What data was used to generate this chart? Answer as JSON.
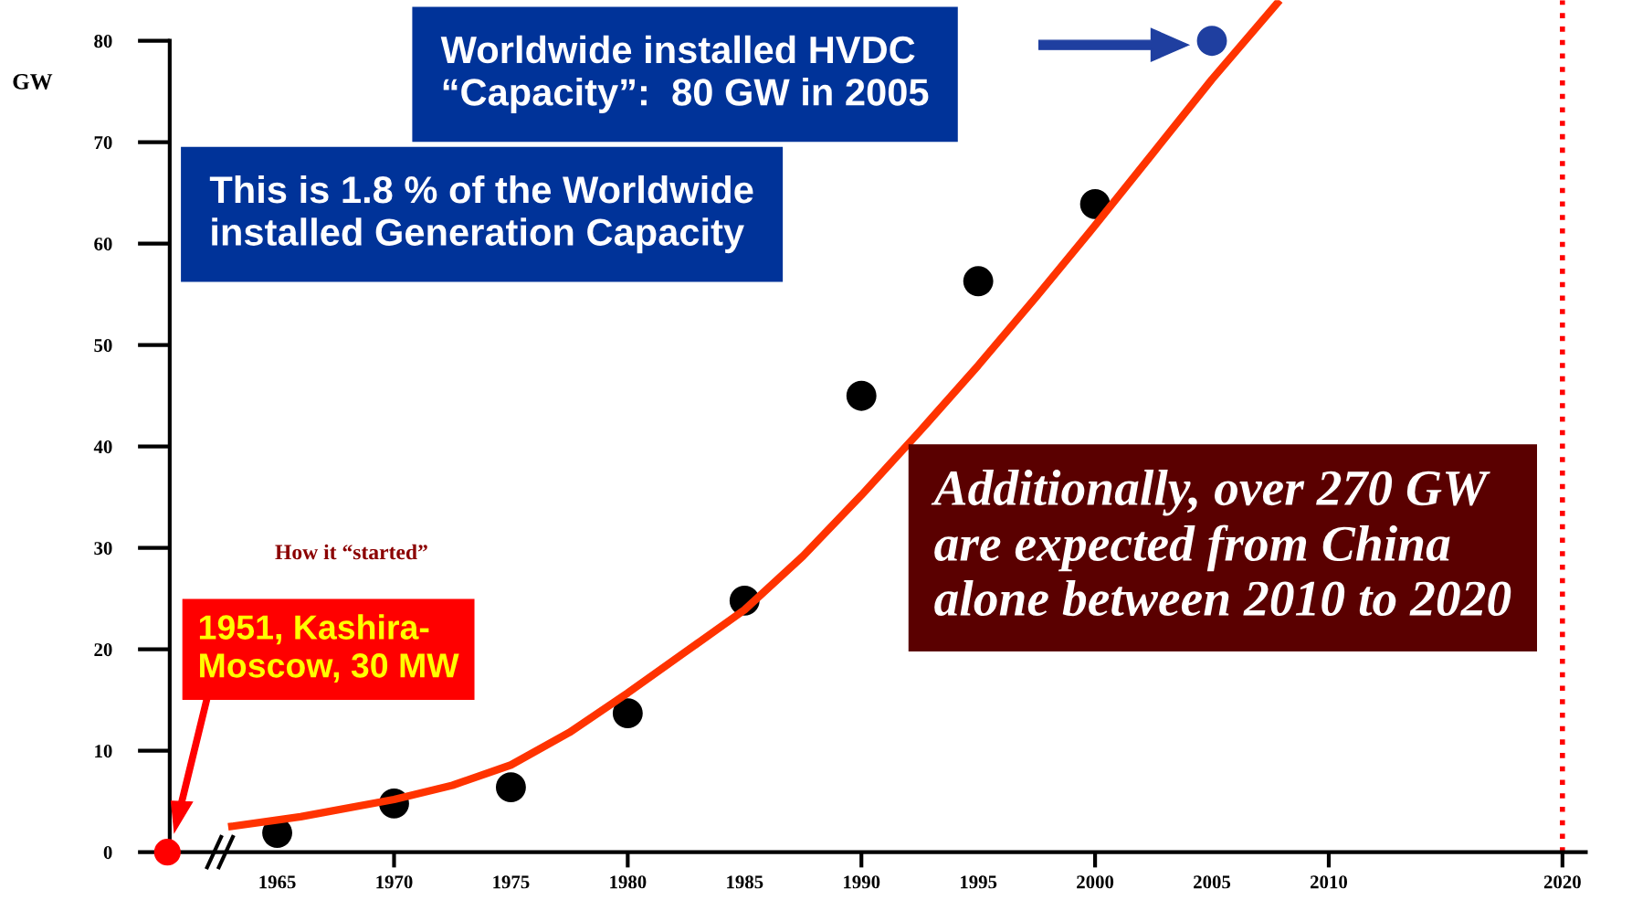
{
  "chart_data": {
    "type": "scatter",
    "ylabel": "GW",
    "xlim": [
      1960.4,
      2021
    ],
    "ylim": [
      0,
      84
    ],
    "xticks": [
      1965,
      1970,
      1975,
      1980,
      1985,
      1990,
      1995,
      2000,
      2005,
      2010,
      2020
    ],
    "yticks": [
      0,
      10,
      20,
      30,
      40,
      50,
      60,
      70,
      80
    ],
    "series": [
      {
        "marker": "circle",
        "color": "#000000",
        "x": [
          1965,
          1970,
          1975,
          1980,
          1985,
          1990,
          1995,
          2000
        ],
        "values": [
          1.9,
          4.8,
          6.4,
          13.7,
          24.8,
          45,
          56.3,
          63.9
        ]
      },
      {
        "marker": "circle",
        "color": "#1f3fa0",
        "x": [
          2005
        ],
        "values": [
          80
        ]
      },
      {
        "type": "line",
        "color": "#ff3300",
        "x": [
          1962.9,
          1966,
          1970,
          1972.5,
          1975,
          1977.5,
          1980,
          1982.5,
          1985,
          1987.5,
          1990,
          1992.5,
          1995,
          1997.5,
          2000,
          2002.5,
          2005,
          2007.9
        ],
        "values": [
          2.5,
          3.5,
          5.2,
          6.6,
          8.6,
          11.8,
          15.7,
          19.8,
          23.9,
          29.2,
          35.2,
          41.5,
          48,
          54.8,
          61.8,
          69,
          76.2,
          84
        ]
      }
    ],
    "ref_lines": [
      {
        "axis": "x",
        "value": 2020,
        "color": "#ff0000",
        "line_style": "dotted"
      }
    ],
    "annotations": [
      "Worldwide installed HVDC\n“Capacity”:  80 GW in 2005",
      "This is 1.8 % of the Worldwide\ninstalled Generation Capacity",
      "1951, Kashira-\nMoscow, 30 MW",
      "Additionally, over 270 GW\nare expected from China\nalone between 2010 to 2020",
      "How it “started”"
    ]
  }
}
